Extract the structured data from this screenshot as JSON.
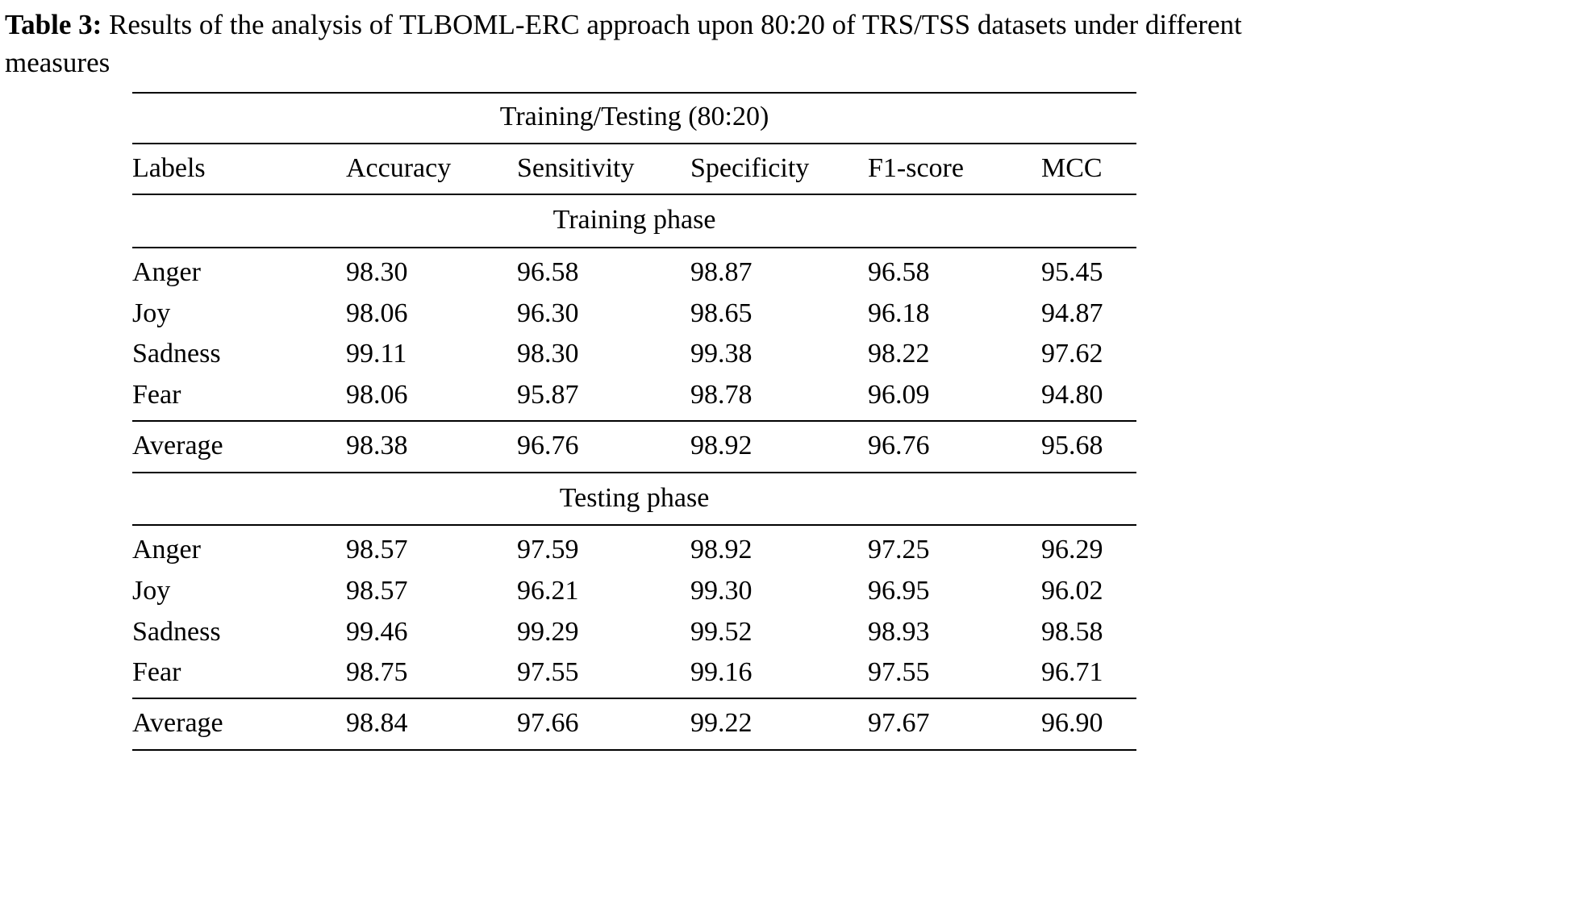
{
  "caption": {
    "label": "Table 3:",
    "text": " Results of the analysis of TLBOML-ERC approach upon 80:20 of TRS/TSS datasets under different measures"
  },
  "table": {
    "span_header": "Training/Testing (80:20)",
    "columns": [
      "Labels",
      "Accuracy",
      "Sensitivity",
      "Specificity",
      "F1-score",
      "MCC"
    ],
    "sections": [
      {
        "name": "Training phase",
        "rows": [
          {
            "label": "Anger",
            "values": [
              "98.30",
              "96.58",
              "98.87",
              "96.58",
              "95.45"
            ]
          },
          {
            "label": "Joy",
            "values": [
              "98.06",
              "96.30",
              "98.65",
              "96.18",
              "94.87"
            ]
          },
          {
            "label": "Sadness",
            "values": [
              "99.11",
              "98.30",
              "99.38",
              "98.22",
              "97.62"
            ]
          },
          {
            "label": "Fear",
            "values": [
              "98.06",
              "95.87",
              "98.78",
              "96.09",
              "94.80"
            ]
          }
        ],
        "average": {
          "label": "Average",
          "values": [
            "98.38",
            "96.76",
            "98.92",
            "96.76",
            "95.68"
          ]
        }
      },
      {
        "name": "Testing phase",
        "rows": [
          {
            "label": "Anger",
            "values": [
              "98.57",
              "97.59",
              "98.92",
              "97.25",
              "96.29"
            ]
          },
          {
            "label": "Joy",
            "values": [
              "98.57",
              "96.21",
              "99.30",
              "96.95",
              "96.02"
            ]
          },
          {
            "label": "Sadness",
            "values": [
              "99.46",
              "99.29",
              "99.52",
              "98.93",
              "98.58"
            ]
          },
          {
            "label": "Fear",
            "values": [
              "98.75",
              "97.55",
              "99.16",
              "97.55",
              "96.71"
            ]
          }
        ],
        "average": {
          "label": "Average",
          "values": [
            "98.84",
            "97.66",
            "99.22",
            "97.67",
            "96.90"
          ]
        }
      }
    ]
  }
}
